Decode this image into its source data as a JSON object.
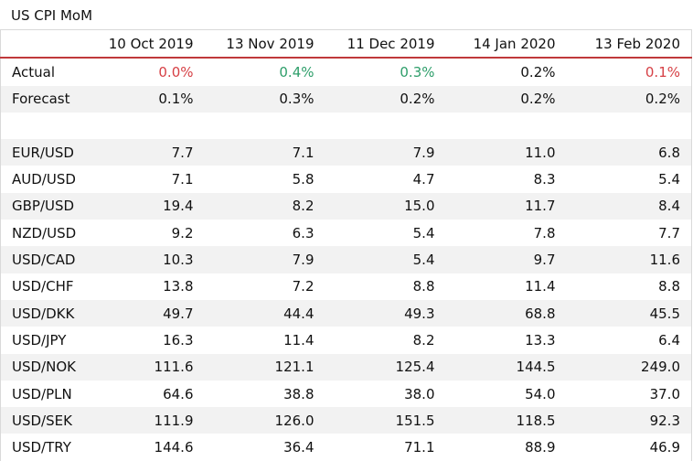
{
  "title": "US CPI MoM",
  "header": {
    "dates": [
      "10 Oct 2019",
      "13 Nov 2019",
      "11 Dec 2019",
      "14 Jan 2020",
      "13 Feb 2020"
    ]
  },
  "indicators": [
    {
      "label": "Actual",
      "values": [
        "0.0%",
        "0.4%",
        "0.3%",
        "0.2%",
        "0.1%"
      ],
      "tones": [
        "neg",
        "pos",
        "pos",
        "",
        "neg"
      ]
    },
    {
      "label": "Forecast",
      "values": [
        "0.1%",
        "0.3%",
        "0.2%",
        "0.2%",
        "0.2%"
      ],
      "tones": [
        "",
        "",
        "",
        "",
        ""
      ]
    }
  ],
  "pairs": [
    {
      "label": "EUR/USD",
      "values": [
        "7.7",
        "7.1",
        "7.9",
        "11.0",
        "6.8"
      ]
    },
    {
      "label": "AUD/USD",
      "values": [
        "7.1",
        "5.8",
        "4.7",
        "8.3",
        "5.4"
      ]
    },
    {
      "label": "GBP/USD",
      "values": [
        "19.4",
        "8.2",
        "15.0",
        "11.7",
        "8.4"
      ]
    },
    {
      "label": "NZD/USD",
      "values": [
        "9.2",
        "6.3",
        "5.4",
        "7.8",
        "7.7"
      ]
    },
    {
      "label": "USD/CAD",
      "values": [
        "10.3",
        "7.9",
        "5.4",
        "9.7",
        "11.6"
      ]
    },
    {
      "label": "USD/CHF",
      "values": [
        "13.8",
        "7.2",
        "8.8",
        "11.4",
        "8.8"
      ]
    },
    {
      "label": "USD/DKK",
      "values": [
        "49.7",
        "44.4",
        "49.3",
        "68.8",
        "45.5"
      ]
    },
    {
      "label": "USD/JPY",
      "values": [
        "16.3",
        "11.4",
        "8.2",
        "13.3",
        "6.4"
      ]
    },
    {
      "label": "USD/NOK",
      "values": [
        "111.6",
        "121.1",
        "125.4",
        "144.5",
        "249.0"
      ]
    },
    {
      "label": "USD/PLN",
      "values": [
        "64.6",
        "38.8",
        "38.0",
        "54.0",
        "37.0"
      ]
    },
    {
      "label": "USD/SEK",
      "values": [
        "111.9",
        "126.0",
        "151.5",
        "118.5",
        "92.3"
      ]
    },
    {
      "label": "USD/TRY",
      "values": [
        "144.6",
        "36.4",
        "71.1",
        "88.9",
        "46.9"
      ]
    }
  ],
  "colors": {
    "header_rule": "#c0393b",
    "negative": "#d64045",
    "positive": "#2e9e6a",
    "stripe": "#f2f2f2"
  }
}
